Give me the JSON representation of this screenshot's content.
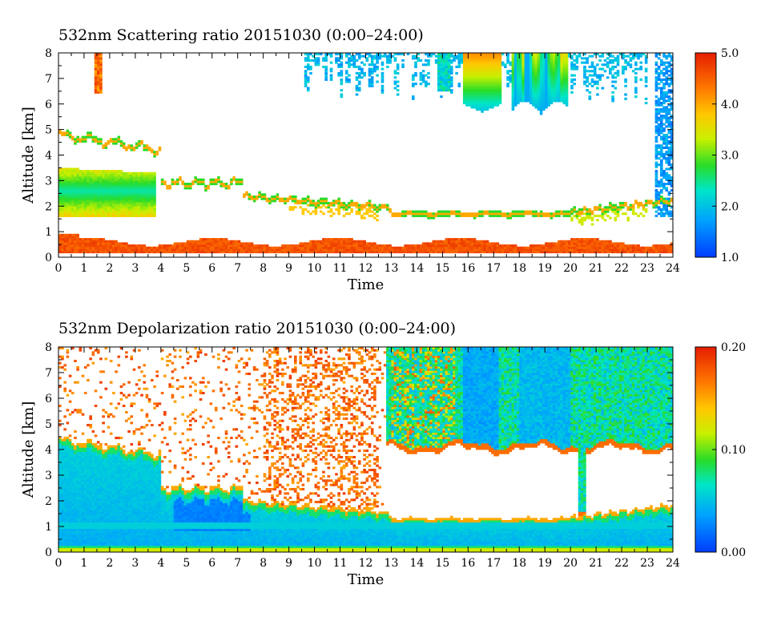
{
  "chart_data": [
    {
      "type": "heatmap",
      "title": "532nm Scattering ratio  20151030 (0:00–24:00)",
      "xlabel": "Time",
      "ylabel": "Altitude [km]",
      "xlim": [
        0,
        24
      ],
      "ylim": [
        0,
        8
      ],
      "x_ticks": [
        "0",
        "1",
        "2",
        "3",
        "4",
        "5",
        "6",
        "7",
        "8",
        "9",
        "10",
        "11",
        "12",
        "13",
        "14",
        "15",
        "16",
        "17",
        "18",
        "19",
        "20",
        "21",
        "22",
        "23",
        "24"
      ],
      "y_ticks": [
        "0",
        "1",
        "2",
        "3",
        "4",
        "5",
        "6",
        "7",
        "8"
      ],
      "colorbar": {
        "range": [
          1.0,
          5.0
        ],
        "tick_labels": [
          "1.0",
          "2.0",
          "3.0",
          "4.0",
          "5.0"
        ],
        "colormap": "rainbow"
      },
      "features": [
        {
          "description": "low-level layer near surface",
          "time_range": [
            0,
            24
          ],
          "altitude_km": [
            0.2,
            0.9
          ],
          "value": 4.7
        },
        {
          "description": "boundary layer top edge",
          "time_range": [
            0,
            24
          ],
          "altitude_km": [
            1.1,
            2.6
          ],
          "value": 2.5
        },
        {
          "description": "aerosol layer",
          "time_range": [
            0,
            3.8
          ],
          "altitude_km": [
            1.5,
            3.6
          ],
          "value": 2.3
        },
        {
          "description": "upper cloud",
          "time_range": [
            1.4,
            1.7
          ],
          "altitude_km": [
            6.4,
            8.0
          ],
          "value": 4.6
        },
        {
          "description": "high cirrus clouds",
          "time_range": [
            9.6,
            23.0
          ],
          "altitude_km": [
            5.6,
            8.0
          ],
          "value": 2.2
        },
        {
          "description": "late cloud column",
          "time_range": [
            23.3,
            24
          ],
          "altitude_km": [
            1.6,
            8.0
          ],
          "value": 1.5
        }
      ]
    },
    {
      "type": "heatmap",
      "title": "532nm Depolarization ratio  20151030 (0:00–24:00)",
      "xlabel": "Time",
      "ylabel": "Altitude [km]",
      "xlim": [
        0,
        24
      ],
      "ylim": [
        0,
        8
      ],
      "x_ticks": [
        "0",
        "1",
        "2",
        "3",
        "4",
        "5",
        "6",
        "7",
        "8",
        "9",
        "10",
        "11",
        "12",
        "13",
        "14",
        "15",
        "16",
        "17",
        "18",
        "19",
        "20",
        "21",
        "22",
        "23",
        "24"
      ],
      "y_ticks": [
        "0",
        "1",
        "2",
        "3",
        "4",
        "5",
        "6",
        "7",
        "8"
      ],
      "colorbar": {
        "range": [
          0.0,
          0.2
        ],
        "tick_labels": [
          "0.00",
          "0.10",
          "0.20"
        ],
        "colormap": "rainbow"
      },
      "features": [
        {
          "description": "boundary layer",
          "time_range": [
            0,
            24
          ],
          "altitude_km": [
            0.1,
            3.8
          ],
          "value": 0.035
        },
        {
          "description": "high cloud region",
          "time_range": [
            12.8,
            24
          ],
          "altitude_km": [
            4.0,
            8.0
          ],
          "value": 0.04
        },
        {
          "description": "scattered noise",
          "time_range": [
            0,
            13
          ],
          "altitude_km": [
            4.0,
            8.0
          ],
          "value": 0.18
        }
      ]
    }
  ]
}
